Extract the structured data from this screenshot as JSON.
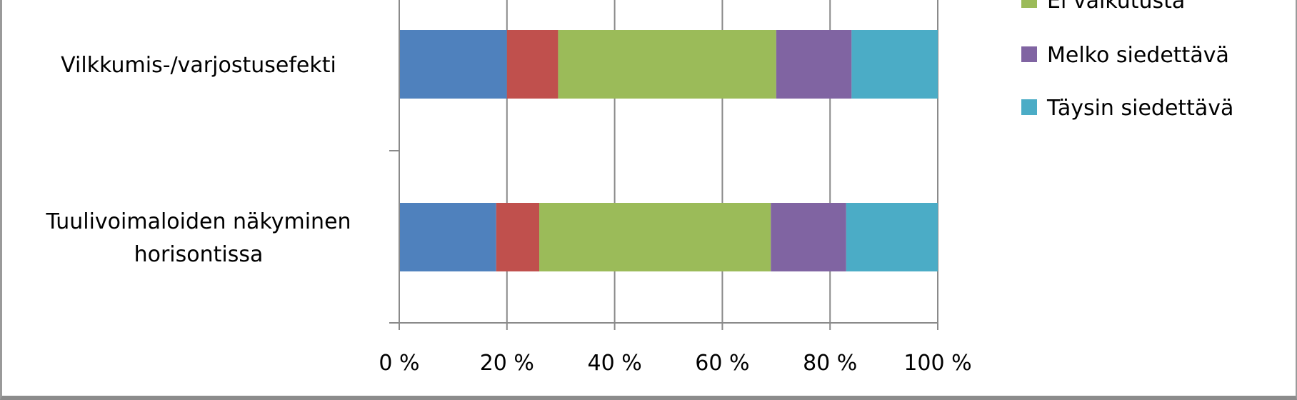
{
  "chart_data": {
    "type": "bar",
    "orientation": "horizontal",
    "stacked": true,
    "percent": true,
    "categories": [
      "Vilkkumis-/varjostusefekti",
      [
        "Tuulivoimaloiden näkyminen",
        "horisontissa"
      ]
    ],
    "series": [
      {
        "name": "",
        "color": "#4f81bd",
        "values": [
          20,
          18
        ]
      },
      {
        "name": "",
        "color": "#c0504d",
        "values": [
          9.5,
          8
        ]
      },
      {
        "name": "Ei vaikutusta",
        "color": "#9bbb59",
        "values": [
          40.5,
          43
        ]
      },
      {
        "name": "Melko siedettävä",
        "color": "#8064a2",
        "values": [
          14,
          14
        ]
      },
      {
        "name": "Täysin siedettävä",
        "color": "#4bacc6",
        "values": [
          16,
          17
        ]
      }
    ],
    "xlim": [
      0,
      100
    ],
    "xticks": [
      "0 %",
      "20 %",
      "40 %",
      "60 %",
      "80 %",
      "100 %"
    ],
    "grid": true,
    "legend_position": "right"
  }
}
